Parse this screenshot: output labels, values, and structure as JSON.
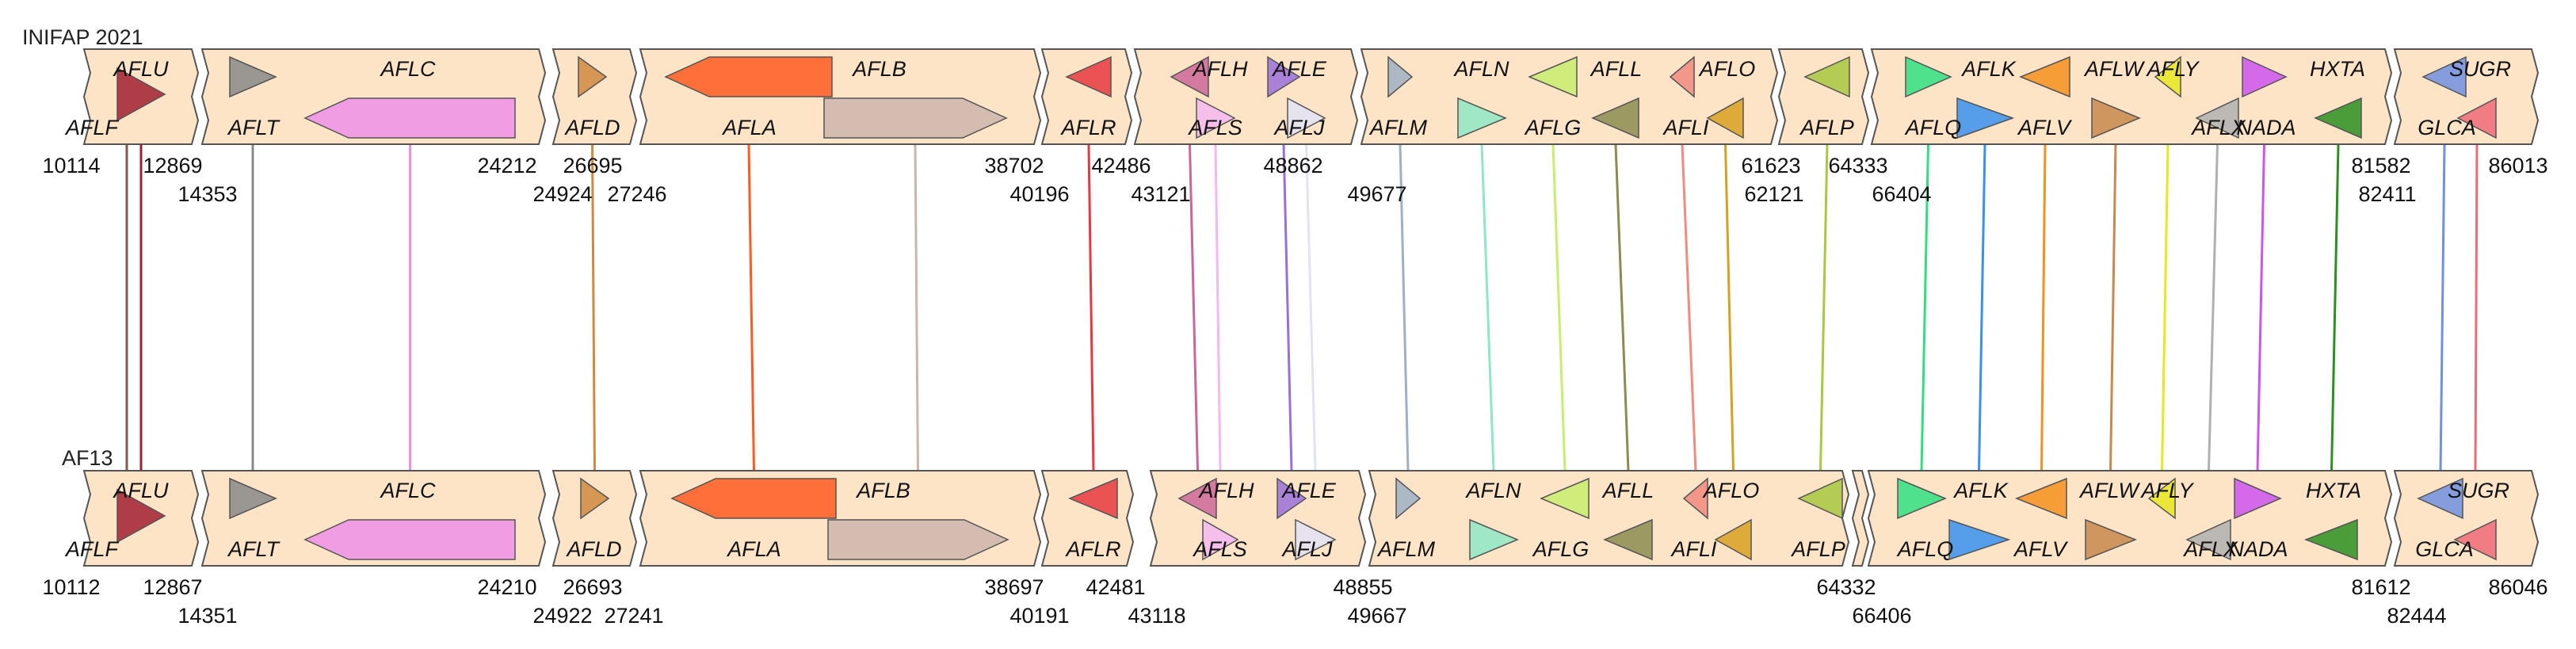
{
  "tracks": [
    {
      "name": "INIFAP 2021",
      "coords_top": [
        "10114",
        "12869",
        "24212",
        "26695",
        "38702",
        "42486",
        "48862",
        "61623",
        "64333",
        "81582",
        "86013"
      ],
      "coords_bottom": [
        "14353",
        "24924",
        "27246",
        "40196",
        "43121",
        "49677",
        "62121",
        "66404",
        "82411"
      ]
    },
    {
      "name": "AF13",
      "coords_top": [
        "10112",
        "12867",
        "24210",
        "26693",
        "38697",
        "42481",
        "48855",
        "64332",
        "81612",
        "86046"
      ],
      "coords_bottom": [
        "14351",
        "24922",
        "27241",
        "40191",
        "43118",
        "49667",
        "66406",
        "82444"
      ]
    }
  ],
  "genes": [
    {
      "name": "AFLU",
      "color": "#8c564b"
    },
    {
      "name": "AFLF",
      "color": "#a02030"
    },
    {
      "name": "AFLT",
      "color": "#888888"
    },
    {
      "name": "AFLC",
      "color": "#ee90e8"
    },
    {
      "name": "AFLD",
      "color": "#d08a40"
    },
    {
      "name": "AFLA",
      "color": "#ff5a20"
    },
    {
      "name": "AFLB",
      "color": "#cdb5ac"
    },
    {
      "name": "AFLR",
      "color": "#e8383f"
    },
    {
      "name": "AFLS",
      "color": "#f5b7f0"
    },
    {
      "name": "AFLH",
      "color": "#cc6699"
    },
    {
      "name": "AFLJ",
      "color": "#e2e2f5"
    },
    {
      "name": "AFLE",
      "color": "#9a70d8"
    },
    {
      "name": "AFLM",
      "color": "#9fb0c4"
    },
    {
      "name": "AFLN",
      "color": "#8ee8c4"
    },
    {
      "name": "AFLG",
      "color": "#c8ee6e"
    },
    {
      "name": "AFLL",
      "color": "#8c8c50"
    },
    {
      "name": "AFLI",
      "color": "#f28a80"
    },
    {
      "name": "AFLO",
      "color": "#d8a020"
    },
    {
      "name": "AFLP",
      "color": "#a8c840"
    },
    {
      "name": "AFLQ",
      "color": "#30e080"
    },
    {
      "name": "AFLK",
      "color": "#3890f0"
    },
    {
      "name": "AFLV",
      "color": "#f5901e"
    },
    {
      "name": "AFLW",
      "color": "#c8884e"
    },
    {
      "name": "AFLX",
      "color": "#b0b0b0"
    },
    {
      "name": "AFLY",
      "color": "#e8e820"
    },
    {
      "name": "NADA",
      "color": "#cc55ee"
    },
    {
      "name": "HXTA",
      "color": "#2a9020"
    },
    {
      "name": "GLCA",
      "color": "#7090e0"
    },
    {
      "name": "SUGR",
      "color": "#f06a78"
    }
  ]
}
